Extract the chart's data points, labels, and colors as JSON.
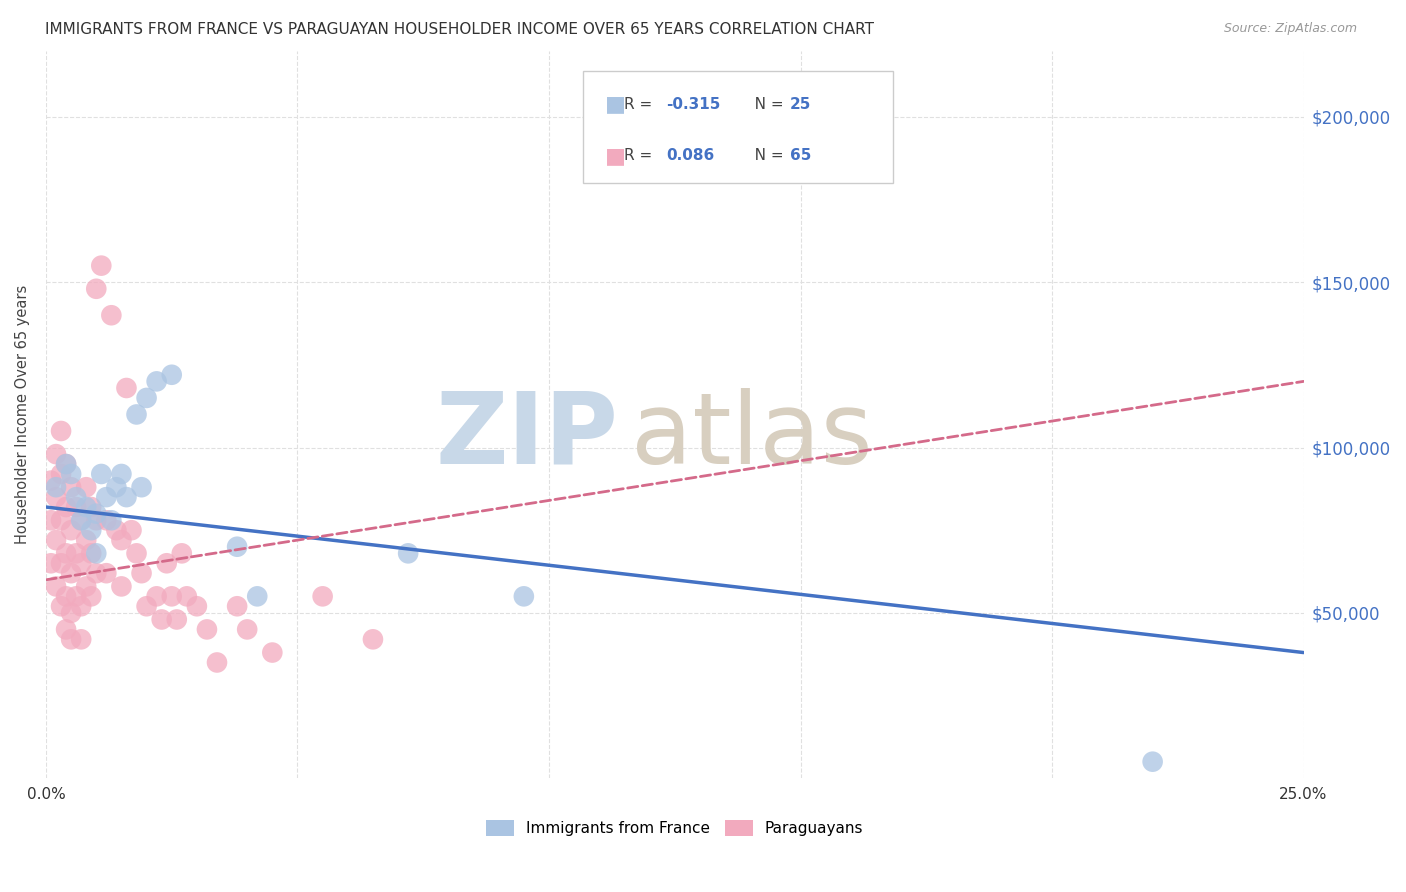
{
  "title": "IMMIGRANTS FROM FRANCE VS PARAGUAYAN HOUSEHOLDER INCOME OVER 65 YEARS CORRELATION CHART",
  "source": "Source: ZipAtlas.com",
  "ylabel": "Householder Income Over 65 years",
  "xlim": [
    0.0,
    0.25
  ],
  "ylim": [
    0,
    220000
  ],
  "xtick_positions": [
    0.0,
    0.05,
    0.1,
    0.15,
    0.2,
    0.25
  ],
  "xticklabels": [
    "0.0%",
    "",
    "",
    "",
    "",
    "25.0%"
  ],
  "ytick_labels": [
    "$50,000",
    "$100,000",
    "$150,000",
    "$200,000"
  ],
  "ytick_values": [
    50000,
    100000,
    150000,
    200000
  ],
  "title_fontsize": 11,
  "source_fontsize": 9,
  "blue_color": "#aac4e2",
  "pink_color": "#f2aabe",
  "blue_line_color": "#4472c4",
  "pink_line_color": "#d46a8a",
  "r_value_color": "#4472c4",
  "background_color": "#ffffff",
  "grid_color": "#e0e0e0",
  "france_x": [
    0.002,
    0.004,
    0.005,
    0.006,
    0.007,
    0.008,
    0.009,
    0.01,
    0.01,
    0.011,
    0.012,
    0.013,
    0.014,
    0.015,
    0.016,
    0.018,
    0.019,
    0.02,
    0.022,
    0.025,
    0.038,
    0.042,
    0.072,
    0.095,
    0.22
  ],
  "france_y": [
    88000,
    95000,
    92000,
    85000,
    78000,
    82000,
    75000,
    80000,
    68000,
    92000,
    85000,
    78000,
    88000,
    92000,
    85000,
    110000,
    88000,
    115000,
    120000,
    122000,
    70000,
    55000,
    68000,
    55000,
    5000
  ],
  "paraguay_x": [
    0.001,
    0.001,
    0.001,
    0.002,
    0.002,
    0.002,
    0.002,
    0.003,
    0.003,
    0.003,
    0.003,
    0.003,
    0.004,
    0.004,
    0.004,
    0.004,
    0.004,
    0.005,
    0.005,
    0.005,
    0.005,
    0.005,
    0.006,
    0.006,
    0.006,
    0.007,
    0.007,
    0.007,
    0.007,
    0.008,
    0.008,
    0.008,
    0.009,
    0.009,
    0.009,
    0.01,
    0.01,
    0.01,
    0.011,
    0.012,
    0.012,
    0.013,
    0.014,
    0.015,
    0.015,
    0.016,
    0.017,
    0.018,
    0.019,
    0.02,
    0.022,
    0.023,
    0.024,
    0.025,
    0.026,
    0.027,
    0.028,
    0.03,
    0.032,
    0.034,
    0.038,
    0.04,
    0.045,
    0.055,
    0.065
  ],
  "paraguay_y": [
    90000,
    78000,
    65000,
    98000,
    85000,
    72000,
    58000,
    105000,
    92000,
    78000,
    65000,
    52000,
    95000,
    82000,
    68000,
    55000,
    45000,
    88000,
    75000,
    62000,
    50000,
    42000,
    82000,
    68000,
    55000,
    78000,
    65000,
    52000,
    42000,
    88000,
    72000,
    58000,
    82000,
    68000,
    55000,
    148000,
    78000,
    62000,
    155000,
    78000,
    62000,
    140000,
    75000,
    72000,
    58000,
    118000,
    75000,
    68000,
    62000,
    52000,
    55000,
    48000,
    65000,
    55000,
    48000,
    68000,
    55000,
    52000,
    45000,
    35000,
    52000,
    45000,
    38000,
    55000,
    42000
  ],
  "blue_trendline_y0": 82000,
  "blue_trendline_y1": 38000,
  "pink_trendline_y0": 60000,
  "pink_trendline_y1": 120000,
  "watermark_zip_color": "#c8d8e8",
  "watermark_atlas_color": "#d8cfc0"
}
